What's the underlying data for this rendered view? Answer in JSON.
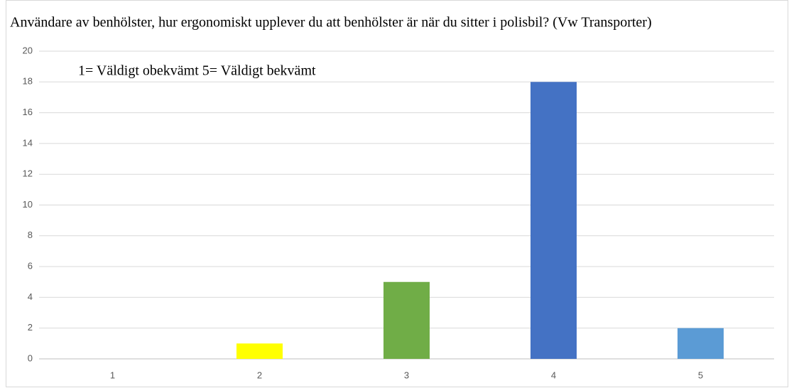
{
  "chart_data": {
    "type": "bar",
    "title": "Användare av benhölster, hur ergonomiskt upplever du att benhölster är när du sitter i polisbil? (Vw Transporter)",
    "annotation": "1= Väldigt obekvämt 5= Väldigt bekvämt",
    "categories": [
      "1",
      "2",
      "3",
      "4",
      "5"
    ],
    "values": [
      0,
      1,
      5,
      18,
      2
    ],
    "colors": [
      "#ed7d31",
      "#ffff00",
      "#70ad47",
      "#4472c4",
      "#5b9bd5"
    ],
    "ylim": [
      0,
      20
    ],
    "yticks": [
      0,
      2,
      4,
      6,
      8,
      10,
      12,
      14,
      16,
      18,
      20
    ],
    "grid": true
  }
}
